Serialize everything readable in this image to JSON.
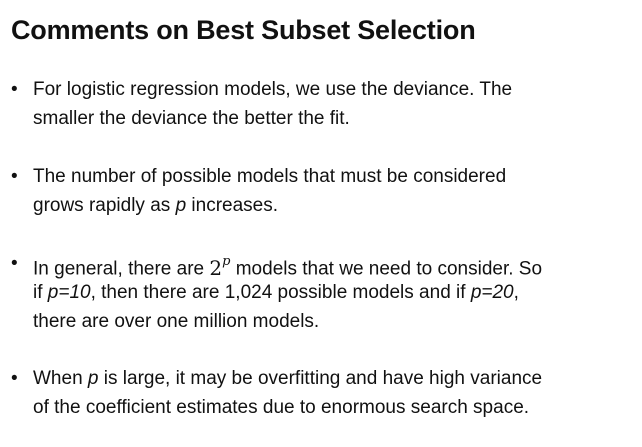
{
  "title": "Comments on Best Subset Selection",
  "bullets": [
    {
      "lines": [
        [
          "For logistic regression models, we use the deviance.  The"
        ],
        [
          "smaller the deviance the better the fit."
        ]
      ]
    },
    {
      "lines": [
        [
          "The number of possible models that must be considered"
        ],
        [
          "grows rapidly as ",
          "p",
          " increases."
        ]
      ]
    },
    {
      "lines": [
        [
          "In general, there are ",
          "2",
          "p",
          " models that we need to consider.  So"
        ],
        [
          "if ",
          "p=10",
          ", then there are 1,024 possible models and if ",
          "p=20",
          ","
        ],
        [
          "there are over one million models."
        ]
      ]
    },
    {
      "lines": [
        [
          "When ",
          "p",
          " is large, it may be overfitting and have high variance"
        ],
        [
          "of the coefficient estimates due to enormous search space."
        ]
      ]
    }
  ]
}
